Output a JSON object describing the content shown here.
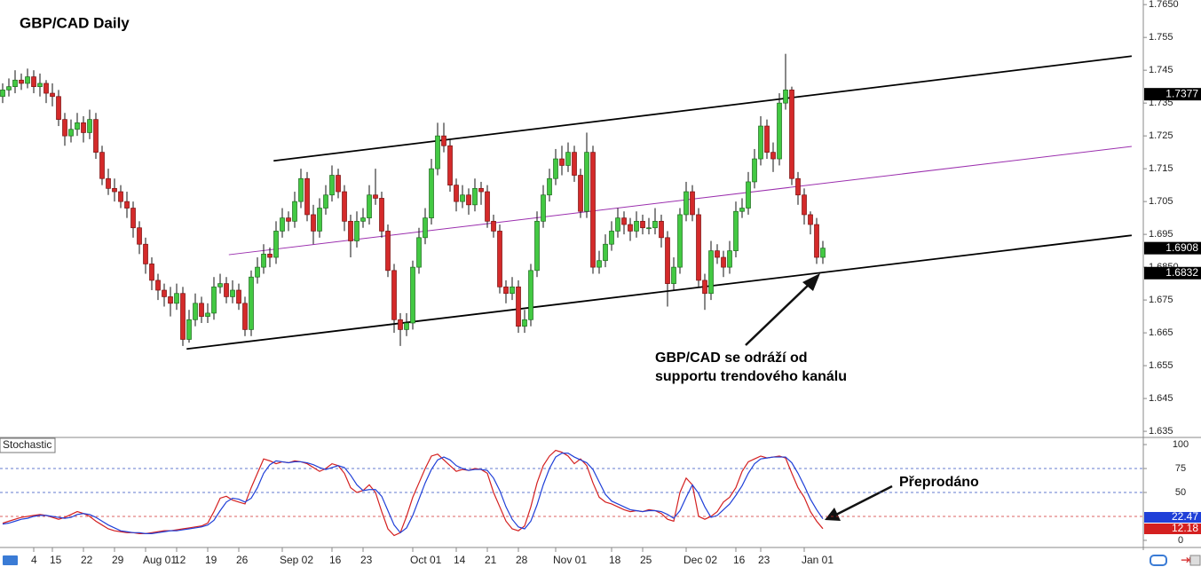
{
  "chart_data": [
    {
      "type": "candlestick",
      "title": "GBP/CAD Daily",
      "xlim": [
        -0.43,
        183.57
      ],
      "ylim": [
        1.6334,
        1.7664
      ],
      "xticks": [
        {
          "value": 5,
          "label": "4"
        },
        {
          "value": 8,
          "label": "15"
        },
        {
          "value": 13,
          "label": "22"
        },
        {
          "value": 18,
          "label": "29"
        },
        {
          "value": 23,
          "label": "Aug 01"
        },
        {
          "value": 28,
          "label": "12"
        },
        {
          "value": 33,
          "label": "19"
        },
        {
          "value": 38,
          "label": "26"
        },
        {
          "value": 45,
          "label": "Sep 02"
        },
        {
          "value": 53,
          "label": "16"
        },
        {
          "value": 58,
          "label": "23"
        },
        {
          "value": 66,
          "label": "Oct 01"
        },
        {
          "value": 73,
          "label": "14"
        },
        {
          "value": 78,
          "label": "21"
        },
        {
          "value": 83,
          "label": "28"
        },
        {
          "value": 89,
          "label": "Nov 01"
        },
        {
          "value": 98,
          "label": "18"
        },
        {
          "value": 103,
          "label": "25"
        },
        {
          "value": 110,
          "label": "Dec 02"
        },
        {
          "value": 118,
          "label": "16"
        },
        {
          "value": 122,
          "label": "23"
        },
        {
          "value": 129,
          "label": "Jan 01"
        }
      ],
      "yticks": [
        {
          "value": 1.765,
          "label": "1.7650"
        },
        1.755,
        1.745,
        1.735,
        1.725,
        1.715,
        1.705,
        1.695,
        {
          "value": 1.685,
          "label": "1.6850"
        },
        1.675,
        1.665,
        1.655,
        1.645,
        1.635
      ],
      "up_color": "#43c943",
      "down_color": "#d42a2a",
      "open": [
        1.737,
        1.739,
        1.74,
        1.742,
        1.741,
        1.743,
        1.74,
        1.741,
        1.738,
        1.737,
        1.73,
        1.725,
        1.727,
        1.729,
        1.726,
        1.73,
        1.72,
        1.712,
        1.709,
        1.708,
        1.705,
        1.703,
        1.697,
        1.692,
        1.686,
        1.681,
        1.678,
        1.676,
        1.674,
        1.677,
        1.663,
        1.669,
        1.674,
        1.67,
        1.671,
        1.679,
        1.68,
        1.676,
        1.678,
        1.674,
        1.666,
        1.682,
        1.685,
        1.689,
        1.688,
        1.696,
        1.7,
        1.699,
        1.705,
        1.712,
        1.701,
        1.696,
        1.703,
        1.707,
        1.713,
        1.708,
        1.699,
        1.693,
        1.699,
        1.7,
        1.707,
        1.706,
        1.696,
        1.684,
        1.669,
        1.666,
        1.668,
        1.685,
        1.694,
        1.7,
        1.715,
        1.725,
        1.722,
        1.71,
        1.705,
        1.707,
        1.704,
        1.709,
        1.708,
        1.699,
        1.696,
        1.679,
        1.677,
        1.679,
        1.667,
        1.669,
        1.684,
        1.699,
        1.707,
        1.712,
        1.718,
        1.716,
        1.72,
        1.713,
        1.702,
        1.72,
        1.685,
        1.687,
        1.692,
        1.696,
        1.7,
        1.698,
        1.696,
        1.699,
        1.697,
        1.697,
        1.699,
        1.694,
        1.68,
        1.685,
        1.701,
        1.708,
        1.701,
        1.681,
        1.677,
        1.69,
        1.688,
        1.685,
        1.69,
        1.702,
        1.703,
        1.711,
        1.718,
        1.728,
        1.72,
        1.718,
        1.735,
        1.739,
        1.712,
        1.707,
        1.701,
        1.698,
        1.688
      ],
      "high": [
        1.741,
        1.7425,
        1.745,
        1.744,
        1.7455,
        1.745,
        1.744,
        1.742,
        1.741,
        1.739,
        1.732,
        1.73,
        1.732,
        1.731,
        1.733,
        1.732,
        1.722,
        1.715,
        1.712,
        1.71,
        1.708,
        1.705,
        1.699,
        1.694,
        1.688,
        1.683,
        1.68,
        1.679,
        1.68,
        1.679,
        1.672,
        1.677,
        1.676,
        1.674,
        1.682,
        1.683,
        1.682,
        1.681,
        1.68,
        1.676,
        1.684,
        1.688,
        1.692,
        1.691,
        1.699,
        1.703,
        1.702,
        1.708,
        1.715,
        1.714,
        1.704,
        1.706,
        1.71,
        1.716,
        1.715,
        1.71,
        1.701,
        1.702,
        1.703,
        1.71,
        1.715,
        1.708,
        1.698,
        1.686,
        1.671,
        1.671,
        1.687,
        1.697,
        1.703,
        1.718,
        1.729,
        1.729,
        1.724,
        1.712,
        1.71,
        1.709,
        1.712,
        1.711,
        1.71,
        1.701,
        1.698,
        1.681,
        1.682,
        1.681,
        1.672,
        1.686,
        1.702,
        1.71,
        1.715,
        1.721,
        1.722,
        1.723,
        1.722,
        1.715,
        1.726,
        1.722,
        1.69,
        1.695,
        1.699,
        1.703,
        1.702,
        1.7,
        1.702,
        1.701,
        1.7,
        1.703,
        1.701,
        1.696,
        1.688,
        1.703,
        1.711,
        1.71,
        1.703,
        1.683,
        1.693,
        1.692,
        1.69,
        1.693,
        1.705,
        1.706,
        1.714,
        1.721,
        1.731,
        1.73,
        1.723,
        1.738,
        1.75,
        1.74,
        1.714,
        1.709,
        1.702,
        1.7,
        1.693
      ],
      "low": [
        1.735,
        1.737,
        1.738,
        1.739,
        1.7395,
        1.738,
        1.737,
        1.735,
        1.734,
        1.728,
        1.722,
        1.723,
        1.725,
        1.723,
        1.724,
        1.718,
        1.71,
        1.707,
        1.705,
        1.703,
        1.7,
        1.694,
        1.689,
        1.683,
        1.678,
        1.675,
        1.673,
        1.67,
        1.672,
        1.661,
        1.662,
        1.667,
        1.668,
        1.668,
        1.669,
        1.677,
        1.674,
        1.674,
        1.672,
        1.664,
        1.664,
        1.68,
        1.683,
        1.685,
        1.686,
        1.694,
        1.696,
        1.697,
        1.703,
        1.699,
        1.692,
        1.694,
        1.701,
        1.705,
        1.706,
        1.696,
        1.688,
        1.691,
        1.697,
        1.698,
        1.704,
        1.694,
        1.682,
        1.665,
        1.661,
        1.664,
        1.666,
        1.683,
        1.692,
        1.698,
        1.713,
        1.72,
        1.708,
        1.702,
        1.703,
        1.701,
        1.702,
        1.704,
        1.697,
        1.694,
        1.677,
        1.674,
        1.675,
        1.665,
        1.665,
        1.667,
        1.682,
        1.697,
        1.705,
        1.71,
        1.713,
        1.714,
        1.711,
        1.7,
        1.7,
        1.683,
        1.683,
        1.685,
        1.69,
        1.694,
        1.695,
        1.693,
        1.694,
        1.695,
        1.695,
        1.695,
        1.691,
        1.673,
        1.678,
        1.683,
        1.699,
        1.699,
        1.679,
        1.672,
        1.675,
        1.686,
        1.682,
        1.683,
        1.688,
        1.7,
        1.701,
        1.709,
        1.716,
        1.718,
        1.714,
        1.716,
        1.733,
        1.71,
        1.704,
        1.698,
        1.695,
        1.686,
        1.686
      ],
      "close": [
        1.739,
        1.74,
        1.742,
        1.741,
        1.743,
        1.74,
        1.741,
        1.738,
        1.737,
        1.73,
        1.725,
        1.727,
        1.729,
        1.726,
        1.73,
        1.72,
        1.712,
        1.709,
        1.708,
        1.705,
        1.703,
        1.697,
        1.692,
        1.686,
        1.681,
        1.678,
        1.676,
        1.674,
        1.677,
        1.663,
        1.669,
        1.674,
        1.67,
        1.671,
        1.679,
        1.68,
        1.676,
        1.678,
        1.674,
        1.666,
        1.682,
        1.685,
        1.689,
        1.688,
        1.696,
        1.7,
        1.699,
        1.705,
        1.712,
        1.701,
        1.696,
        1.703,
        1.707,
        1.713,
        1.708,
        1.699,
        1.693,
        1.699,
        1.7,
        1.707,
        1.706,
        1.696,
        1.684,
        1.669,
        1.666,
        1.668,
        1.685,
        1.694,
        1.7,
        1.715,
        1.725,
        1.722,
        1.71,
        1.705,
        1.707,
        1.704,
        1.709,
        1.708,
        1.699,
        1.696,
        1.679,
        1.677,
        1.679,
        1.667,
        1.669,
        1.684,
        1.699,
        1.707,
        1.712,
        1.718,
        1.716,
        1.72,
        1.713,
        1.702,
        1.72,
        1.685,
        1.687,
        1.692,
        1.696,
        1.7,
        1.698,
        1.696,
        1.699,
        1.697,
        1.697,
        1.699,
        1.694,
        1.68,
        1.685,
        1.701,
        1.708,
        1.701,
        1.681,
        1.677,
        1.69,
        1.688,
        1.685,
        1.69,
        1.702,
        1.703,
        1.711,
        1.718,
        1.728,
        1.72,
        1.718,
        1.735,
        1.739,
        1.712,
        1.707,
        1.701,
        1.698,
        1.688,
        1.6908
      ],
      "lines": [
        {
          "color": "#000000",
          "x": [
            43.6,
            181.7
          ],
          "y": [
            1.7174,
            1.7493
          ]
        },
        {
          "color": "#000000",
          "x": [
            29.6,
            181.7
          ],
          "y": [
            1.6601,
            1.6947
          ]
        },
        {
          "color": "#9b2fae",
          "x": [
            36.4,
            181.7
          ],
          "y": [
            1.6888,
            1.7218
          ]
        }
      ],
      "price_tags": [
        1.7377,
        1.6832
      ],
      "annotations": [
        "GBP/CAD se odráží od",
        "supportu trendového kanálu"
      ]
    },
    {
      "type": "line",
      "title": "Stochastic",
      "annotation": "Přeprodáno",
      "ylim": [
        -5.6,
        106.5
      ],
      "yticks": [
        100,
        75,
        50,
        0
      ],
      "levels": [
        75,
        50,
        25
      ],
      "level_colors": [
        "#3050c0",
        "#3050c0",
        "#d03030"
      ],
      "series": [
        {
          "color": "#d42020",
          "values": [
            18,
            20,
            22,
            24,
            25,
            26,
            27,
            26,
            24,
            22,
            24,
            27,
            30,
            28,
            25,
            20,
            16,
            12,
            10,
            9,
            8,
            8,
            7,
            7,
            8,
            9,
            10,
            10,
            11,
            12,
            13,
            14,
            15,
            18,
            30,
            44,
            46,
            42,
            40,
            38,
            55,
            70,
            85,
            83,
            80,
            82,
            81,
            83,
            82,
            80,
            76,
            72,
            75,
            80,
            78,
            70,
            55,
            50,
            52,
            58,
            50,
            30,
            12,
            5,
            8,
            25,
            45,
            60,
            75,
            88,
            90,
            84,
            78,
            72,
            74,
            73,
            75,
            74,
            70,
            50,
            35,
            20,
            12,
            10,
            15,
            35,
            60,
            78,
            88,
            94,
            92,
            88,
            80,
            85,
            78,
            60,
            45,
            40,
            38,
            35,
            32,
            30,
            31,
            30,
            32,
            31,
            28,
            22,
            20,
            50,
            65,
            58,
            25,
            22,
            25,
            30,
            40,
            45,
            55,
            72,
            82,
            85,
            88,
            86,
            87,
            88,
            86,
            70,
            55,
            45,
            30,
            20,
            12.18
          ]
        },
        {
          "color": "#2040d8",
          "values": [
            17,
            18,
            20,
            22,
            23,
            25,
            26,
            26,
            25,
            24,
            23,
            24,
            27,
            28,
            27,
            24,
            20,
            16,
            13,
            10,
            9,
            8,
            8,
            7,
            7,
            8,
            9,
            10,
            10,
            11,
            12,
            13,
            14,
            16,
            21,
            31,
            40,
            44,
            43,
            40,
            44,
            55,
            70,
            79,
            83,
            82,
            81,
            82,
            82,
            81,
            79,
            76,
            74,
            76,
            78,
            76,
            68,
            58,
            52,
            53,
            53,
            46,
            31,
            16,
            8,
            13,
            26,
            43,
            60,
            74,
            84,
            87,
            84,
            78,
            75,
            73,
            74,
            74,
            73,
            65,
            52,
            35,
            22,
            14,
            12,
            20,
            37,
            58,
            75,
            87,
            91,
            91,
            87,
            84,
            81,
            74,
            61,
            48,
            41,
            38,
            35,
            32,
            31,
            30,
            31,
            31,
            30,
            27,
            23,
            31,
            45,
            58,
            49,
            35,
            24,
            26,
            32,
            38,
            47,
            57,
            70,
            80,
            85,
            86,
            87,
            87,
            87,
            81,
            70,
            57,
            43,
            32,
            22.47
          ]
        }
      ]
    }
  ]
}
